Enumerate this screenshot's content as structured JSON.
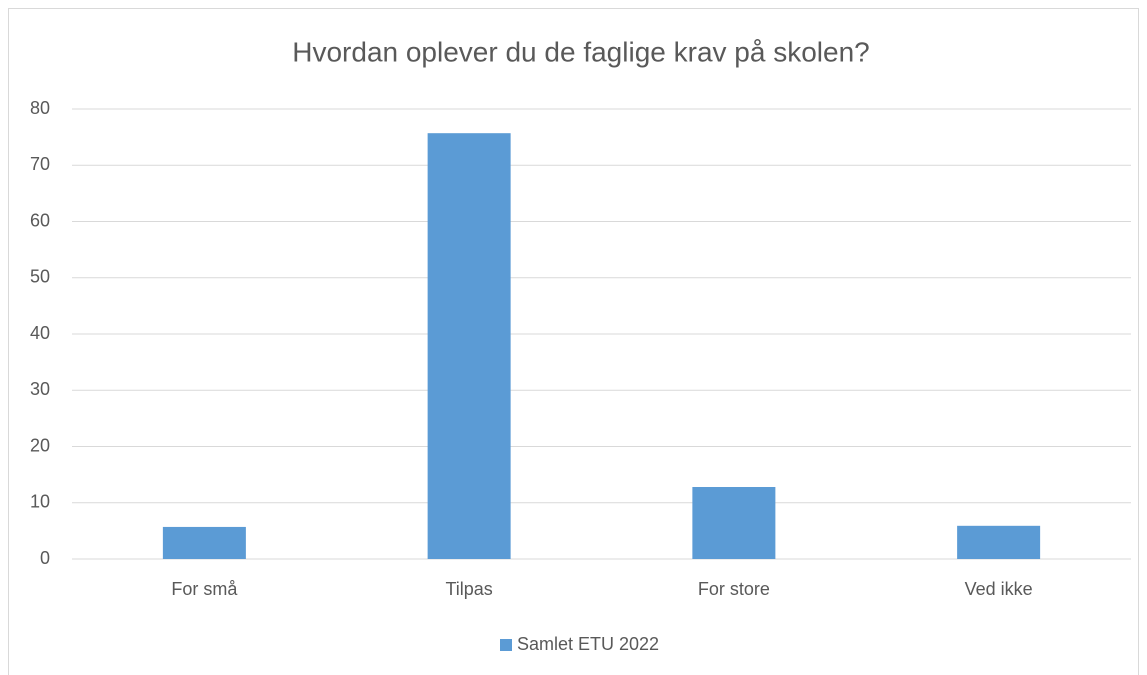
{
  "chart_data": {
    "type": "bar",
    "title": "Hvordan oplever du de faglige krav på skolen?",
    "categories": [
      "For små",
      "Tilpas",
      "For store",
      "Ved ikke"
    ],
    "series": [
      {
        "name": "Samlet ETU 2022",
        "color": "#5b9bd5",
        "values": [
          5.7,
          75.7,
          12.8,
          5.9
        ]
      }
    ],
    "ylim": [
      0,
      80
    ],
    "yticks": [
      0,
      10,
      20,
      30,
      40,
      50,
      60,
      70,
      80
    ],
    "grid": true,
    "legend": "bottom"
  }
}
